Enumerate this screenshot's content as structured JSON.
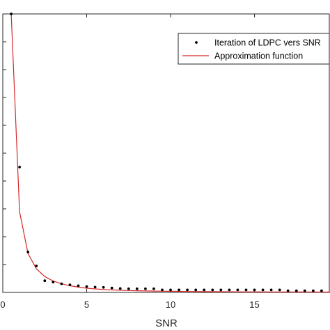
{
  "chart_data": {
    "type": "scatter",
    "xlabel": "SNR",
    "x_ticks": [
      0,
      5,
      10,
      15
    ],
    "xlim": [
      0,
      19.5
    ],
    "ylim": [
      0,
      100
    ],
    "grid": false,
    "legend_position": "top-right",
    "series": [
      {
        "name": "Iteration of LDPC vers SNR",
        "kind": "markers",
        "color": "#000000",
        "x": [
          0.5,
          1,
          1.5,
          2,
          2.5,
          3,
          3.5,
          4,
          4.5,
          5,
          5.5,
          6,
          6.5,
          7,
          7.5,
          8,
          8.5,
          9,
          9.5,
          10,
          10.5,
          11,
          11.5,
          12,
          12.5,
          13,
          13.5,
          14,
          14.5,
          15,
          15.5,
          16,
          16.5,
          17,
          17.5,
          18,
          18.5,
          19
        ],
        "y": [
          100,
          45,
          14.5,
          9.5,
          4.2,
          3.7,
          3.1,
          2.7,
          2.4,
          2.1,
          1.9,
          1.8,
          1.6,
          1.4,
          1.3,
          1.3,
          1.3,
          1.3,
          0.9,
          0.9,
          0.9,
          0.9,
          0.9,
          0.9,
          0.9,
          0.9,
          0.9,
          0.9,
          0.9,
          0.9,
          0.9,
          0.9,
          0.9,
          0.6,
          0.6,
          0.6,
          0.6,
          0.6
        ]
      },
      {
        "name": "Approximation function",
        "kind": "line",
        "color": "#d62728",
        "x": [
          0.5,
          1,
          1.5,
          2,
          2.5,
          3,
          3.5,
          4,
          4.5,
          5,
          5.5,
          6,
          6.5,
          7,
          7.5,
          8,
          8.5,
          9,
          9.5,
          10,
          11,
          12,
          13,
          14,
          15,
          16,
          17,
          18,
          19,
          19.5
        ],
        "y": [
          100,
          29,
          14,
          8.5,
          5.7,
          4.1,
          3.1,
          2.4,
          1.9,
          1.5,
          1.25,
          1.05,
          0.9,
          0.78,
          0.68,
          0.6,
          0.53,
          0.48,
          0.43,
          0.39,
          0.33,
          0.28,
          0.24,
          0.21,
          0.19,
          0.17,
          0.15,
          0.14,
          0.13,
          0.12
        ]
      }
    ]
  }
}
